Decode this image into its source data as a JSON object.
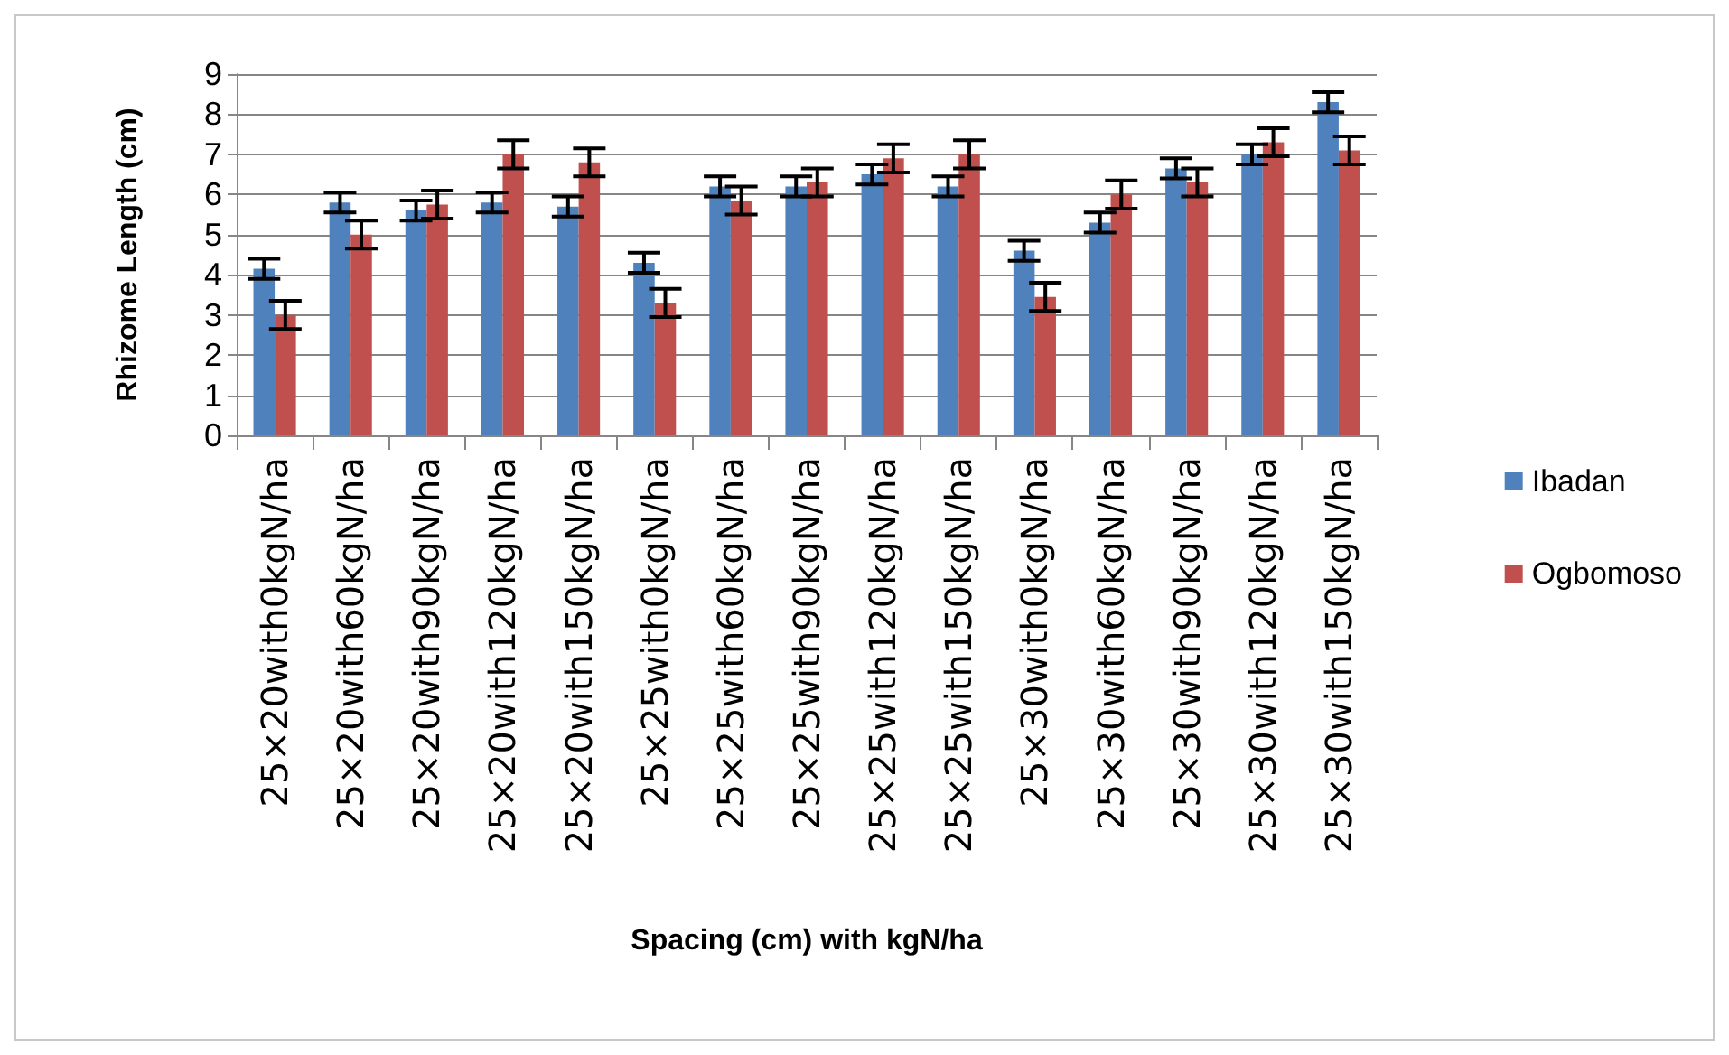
{
  "chart_data": {
    "type": "bar",
    "xlabel": "Spacing (cm) with kgN/ha",
    "ylabel": "Rhizome Length (cm)",
    "categories": [
      "25×20with0kgN/ha",
      "25×20with60kgN/ha",
      "25×20with90kgN/ha",
      "25×20with120kgN/ha",
      "25×20with150kgN/ha",
      "25×25with0kgN/ha",
      "25×25with60kgN/ha",
      "25×25with90kgN/ha",
      "25×25with120kgN/ha",
      "25×25with150kgN/ha",
      "25×30with0kgN/ha",
      "25×30with60kgN/ha",
      "25×30with90kgN/ha",
      "25×30with120kgN/ha",
      "25×30with150kgN/ha"
    ],
    "series": [
      {
        "name": "Ibadan",
        "color": "#4f81bd",
        "values": [
          4.15,
          5.8,
          5.6,
          5.8,
          5.7,
          4.3,
          6.2,
          6.2,
          6.5,
          6.2,
          4.6,
          5.3,
          6.65,
          7.0,
          8.3
        ],
        "errors": [
          0.25,
          0.25,
          0.25,
          0.25,
          0.25,
          0.25,
          0.25,
          0.25,
          0.25,
          0.25,
          0.25,
          0.25,
          0.25,
          0.25,
          0.25
        ]
      },
      {
        "name": "Ogbomoso",
        "color": "#c0504d",
        "values": [
          3.0,
          5.0,
          5.75,
          7.0,
          6.8,
          3.3,
          5.85,
          6.3,
          6.9,
          7.0,
          3.45,
          6.0,
          6.3,
          7.3,
          7.1
        ],
        "errors": [
          0.35,
          0.35,
          0.35,
          0.35,
          0.35,
          0.35,
          0.35,
          0.35,
          0.35,
          0.35,
          0.35,
          0.35,
          0.35,
          0.35,
          0.35
        ]
      }
    ],
    "ylim": [
      0,
      9
    ],
    "yticks": [
      0,
      1,
      2,
      3,
      4,
      5,
      6,
      7,
      8,
      9
    ],
    "grid": "y",
    "legend": "right"
  }
}
